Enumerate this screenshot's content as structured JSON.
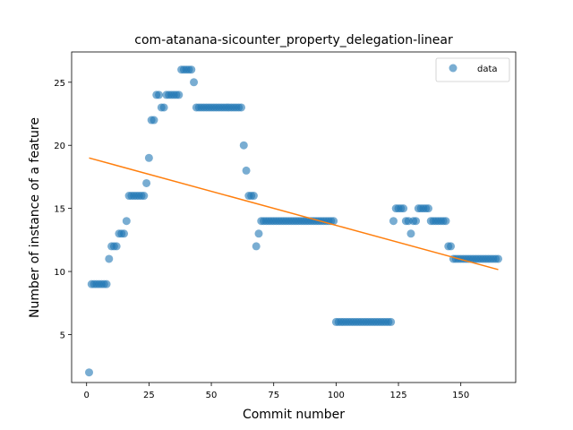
{
  "chart_data": {
    "type": "scatter",
    "title": "com-atanana-sicounter_property_delegation-linear",
    "xlabel": "Commit number",
    "ylabel": "Number of instance of a feature",
    "xlim": [
      -6,
      172
    ],
    "ylim": [
      1.2,
      27.4
    ],
    "xticks": [
      0,
      25,
      50,
      75,
      100,
      125,
      150
    ],
    "yticks": [
      5,
      10,
      15,
      20,
      25
    ],
    "grid": false,
    "legend_position": "top-right",
    "colors": {
      "data": "#1f77b4",
      "fit": "#ff7f0e"
    },
    "series": [
      {
        "name": "data",
        "kind": "scatter",
        "points": [
          [
            1,
            2
          ],
          [
            2,
            9
          ],
          [
            3,
            9
          ],
          [
            4,
            9
          ],
          [
            5,
            9
          ],
          [
            6,
            9
          ],
          [
            7,
            9
          ],
          [
            8,
            9
          ],
          [
            9,
            11
          ],
          [
            10,
            12
          ],
          [
            11,
            12
          ],
          [
            12,
            12
          ],
          [
            13,
            13
          ],
          [
            14,
            13
          ],
          [
            15,
            13
          ],
          [
            16,
            14
          ],
          [
            17,
            16
          ],
          [
            18,
            16
          ],
          [
            19,
            16
          ],
          [
            20,
            16
          ],
          [
            21,
            16
          ],
          [
            22,
            16
          ],
          [
            23,
            16
          ],
          [
            24,
            17
          ],
          [
            25,
            19
          ],
          [
            26,
            22
          ],
          [
            27,
            22
          ],
          [
            28,
            24
          ],
          [
            29,
            24
          ],
          [
            30,
            23
          ],
          [
            31,
            23
          ],
          [
            32,
            24
          ],
          [
            33,
            24
          ],
          [
            34,
            24
          ],
          [
            35,
            24
          ],
          [
            36,
            24
          ],
          [
            37,
            24
          ],
          [
            38,
            26
          ],
          [
            39,
            26
          ],
          [
            40,
            26
          ],
          [
            41,
            26
          ],
          [
            42,
            26
          ],
          [
            43,
            25
          ],
          [
            44,
            23
          ],
          [
            45,
            23
          ],
          [
            46,
            23
          ],
          [
            47,
            23
          ],
          [
            48,
            23
          ],
          [
            49,
            23
          ],
          [
            50,
            23
          ],
          [
            51,
            23
          ],
          [
            52,
            23
          ],
          [
            53,
            23
          ],
          [
            54,
            23
          ],
          [
            55,
            23
          ],
          [
            56,
            23
          ],
          [
            57,
            23
          ],
          [
            58,
            23
          ],
          [
            59,
            23
          ],
          [
            60,
            23
          ],
          [
            61,
            23
          ],
          [
            62,
            23
          ],
          [
            63,
            20
          ],
          [
            64,
            18
          ],
          [
            65,
            16
          ],
          [
            66,
            16
          ],
          [
            67,
            16
          ],
          [
            68,
            12
          ],
          [
            69,
            13
          ],
          [
            70,
            14
          ],
          [
            71,
            14
          ],
          [
            72,
            14
          ],
          [
            73,
            14
          ],
          [
            74,
            14
          ],
          [
            75,
            14
          ],
          [
            76,
            14
          ],
          [
            77,
            14
          ],
          [
            78,
            14
          ],
          [
            79,
            14
          ],
          [
            80,
            14
          ],
          [
            81,
            14
          ],
          [
            82,
            14
          ],
          [
            83,
            14
          ],
          [
            84,
            14
          ],
          [
            85,
            14
          ],
          [
            86,
            14
          ],
          [
            87,
            14
          ],
          [
            88,
            14
          ],
          [
            89,
            14
          ],
          [
            90,
            14
          ],
          [
            91,
            14
          ],
          [
            92,
            14
          ],
          [
            93,
            14
          ],
          [
            94,
            14
          ],
          [
            95,
            14
          ],
          [
            96,
            14
          ],
          [
            97,
            14
          ],
          [
            98,
            14
          ],
          [
            99,
            14
          ],
          [
            100,
            6
          ],
          [
            101,
            6
          ],
          [
            102,
            6
          ],
          [
            103,
            6
          ],
          [
            104,
            6
          ],
          [
            105,
            6
          ],
          [
            106,
            6
          ],
          [
            107,
            6
          ],
          [
            108,
            6
          ],
          [
            109,
            6
          ],
          [
            110,
            6
          ],
          [
            111,
            6
          ],
          [
            112,
            6
          ],
          [
            113,
            6
          ],
          [
            114,
            6
          ],
          [
            115,
            6
          ],
          [
            116,
            6
          ],
          [
            117,
            6
          ],
          [
            118,
            6
          ],
          [
            119,
            6
          ],
          [
            120,
            6
          ],
          [
            121,
            6
          ],
          [
            122,
            6
          ],
          [
            123,
            14
          ],
          [
            124,
            15
          ],
          [
            125,
            15
          ],
          [
            126,
            15
          ],
          [
            127,
            15
          ],
          [
            128,
            14
          ],
          [
            129,
            14
          ],
          [
            130,
            13
          ],
          [
            131,
            14
          ],
          [
            132,
            14
          ],
          [
            133,
            15
          ],
          [
            134,
            15
          ],
          [
            135,
            15
          ],
          [
            136,
            15
          ],
          [
            137,
            15
          ],
          [
            138,
            14
          ],
          [
            139,
            14
          ],
          [
            140,
            14
          ],
          [
            141,
            14
          ],
          [
            142,
            14
          ],
          [
            143,
            14
          ],
          [
            144,
            14
          ],
          [
            145,
            12
          ],
          [
            146,
            12
          ],
          [
            147,
            11
          ],
          [
            148,
            11
          ],
          [
            149,
            11
          ],
          [
            150,
            11
          ],
          [
            151,
            11
          ],
          [
            152,
            11
          ],
          [
            153,
            11
          ],
          [
            154,
            11
          ],
          [
            155,
            11
          ],
          [
            156,
            11
          ],
          [
            157,
            11
          ],
          [
            158,
            11
          ],
          [
            159,
            11
          ],
          [
            160,
            11
          ],
          [
            161,
            11
          ],
          [
            162,
            11
          ],
          [
            163,
            11
          ],
          [
            164,
            11
          ],
          [
            165,
            11
          ]
        ]
      },
      {
        "name": "",
        "kind": "line",
        "points": [
          [
            1,
            19
          ],
          [
            165,
            10.15
          ]
        ]
      }
    ],
    "legend": [
      "data"
    ]
  }
}
